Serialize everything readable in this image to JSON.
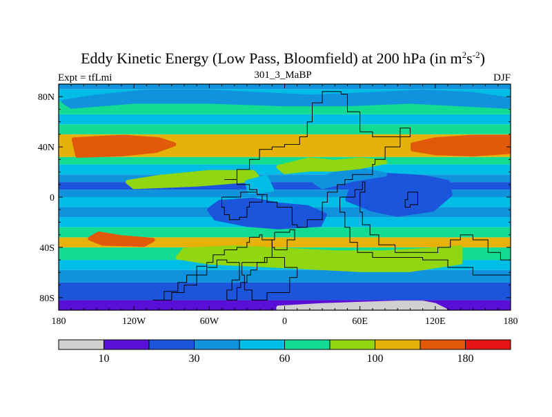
{
  "chart_data": {
    "type": "heatmap",
    "title": {
      "main": "Eddy Kinetic Energy (Low Pass, Bloomfield) at 200 hPa (in m",
      "sup1": "2",
      "mid": "s",
      "sup2": "-2",
      "end": ")"
    },
    "subtitle": "301_3_MaBP",
    "left_label": "Expt = tfLmi",
    "right_label": "DJF",
    "x_range": [
      -180,
      180
    ],
    "y_range": [
      -90,
      90
    ],
    "x_ticks": [
      {
        "value": -180,
        "label": "180"
      },
      {
        "value": -120,
        "label": "120W"
      },
      {
        "value": -60,
        "label": "60W"
      },
      {
        "value": 0,
        "label": "0"
      },
      {
        "value": 60,
        "label": "60E"
      },
      {
        "value": 120,
        "label": "120E"
      },
      {
        "value": 180,
        "label": "180"
      }
    ],
    "y_ticks": [
      {
        "value": 80,
        "label": "80N"
      },
      {
        "value": 40,
        "label": "40N"
      },
      {
        "value": 0,
        "label": "0"
      },
      {
        "value": -40,
        "label": "40S"
      },
      {
        "value": -80,
        "label": "80S"
      }
    ],
    "colorbar": {
      "colors": [
        "#d0d0d0",
        "#5a0fd6",
        "#1a55dc",
        "#1192dc",
        "#00bde6",
        "#12dc92",
        "#90d612",
        "#e6b20a",
        "#e05a0a",
        "#e61414"
      ],
      "label_positions": [
        1,
        3,
        5,
        7,
        9
      ],
      "labels": [
        "10",
        "30",
        "60",
        "100",
        "180"
      ]
    },
    "bands": [
      {
        "lat": [
          -90,
          -82
        ],
        "level": 1
      },
      {
        "lat": [
          -82,
          -68
        ],
        "level": 2
      },
      {
        "lat": [
          -68,
          -58
        ],
        "level": 3
      },
      {
        "lat": [
          -58,
          -50
        ],
        "level": 4
      },
      {
        "lat": [
          -50,
          -40
        ],
        "level": 5
      },
      {
        "lat": [
          -40,
          -32
        ],
        "level": 7
      },
      {
        "lat": [
          -32,
          -24
        ],
        "level": 5
      },
      {
        "lat": [
          -24,
          -16
        ],
        "level": 4
      },
      {
        "lat": [
          -16,
          -8
        ],
        "level": 3
      },
      {
        "lat": [
          -8,
          0
        ],
        "level": 4
      },
      {
        "lat": [
          0,
          6
        ],
        "level": 3
      },
      {
        "lat": [
          6,
          12
        ],
        "level": 2
      },
      {
        "lat": [
          12,
          18
        ],
        "level": 3
      },
      {
        "lat": [
          18,
          26
        ],
        "level": 4
      },
      {
        "lat": [
          26,
          32
        ],
        "level": 5
      },
      {
        "lat": [
          32,
          50
        ],
        "level": 7
      },
      {
        "lat": [
          50,
          58
        ],
        "level": 5
      },
      {
        "lat": [
          58,
          66
        ],
        "level": 4
      },
      {
        "lat": [
          66,
          76
        ],
        "level": 5
      },
      {
        "lat": [
          76,
          86
        ],
        "level": 4
      },
      {
        "lat": [
          86,
          90
        ],
        "level": 3
      }
    ],
    "patches": [
      {
        "level": 8,
        "points": [
          [
            -168,
            46
          ],
          [
            -150,
            47
          ],
          [
            -128,
            48
          ],
          [
            -100,
            46
          ],
          [
            -88,
            42
          ],
          [
            -102,
            37
          ],
          [
            -130,
            34
          ],
          [
            -165,
            33
          ]
        ]
      },
      {
        "level": 8,
        "points": [
          [
            102,
            42
          ],
          [
            120,
            46
          ],
          [
            150,
            48
          ],
          [
            180,
            48
          ],
          [
            180,
            36
          ],
          [
            150,
            34
          ],
          [
            120,
            35
          ],
          [
            102,
            38
          ]
        ]
      },
      {
        "level": 8,
        "points": [
          [
            -148,
            -29
          ],
          [
            -130,
            -32
          ],
          [
            -105,
            -34
          ],
          [
            -112,
            -38
          ],
          [
            -145,
            -37
          ],
          [
            -155,
            -33
          ]
        ]
      },
      {
        "level": 2,
        "points": [
          [
            -52,
            -4
          ],
          [
            -25,
            -2
          ],
          [
            -5,
            -6
          ],
          [
            18,
            -8
          ],
          [
            32,
            -14
          ],
          [
            28,
            -22
          ],
          [
            -5,
            -24
          ],
          [
            -30,
            -22
          ],
          [
            -55,
            -17
          ],
          [
            -60,
            -10
          ]
        ]
      },
      {
        "level": 2,
        "points": [
          [
            55,
            12
          ],
          [
            75,
            18
          ],
          [
            110,
            16
          ],
          [
            130,
            12
          ],
          [
            132,
            2
          ],
          [
            118,
            -10
          ],
          [
            90,
            -14
          ],
          [
            70,
            -10
          ],
          [
            50,
            -2
          ]
        ]
      },
      {
        "level": 3,
        "points": [
          [
            30,
            8
          ],
          [
            55,
            14
          ],
          [
            80,
            18
          ],
          [
            60,
            22
          ],
          [
            38,
            18
          ],
          [
            24,
            12
          ]
        ]
      },
      {
        "level": 6,
        "points": [
          [
            -120,
            8
          ],
          [
            -70,
            10
          ],
          [
            -45,
            12
          ],
          [
            -20,
            14
          ],
          [
            -25,
            20
          ],
          [
            -60,
            20
          ],
          [
            -100,
            16
          ],
          [
            -125,
            12
          ]
        ]
      },
      {
        "level": 6,
        "points": [
          [
            -80,
            -42
          ],
          [
            -40,
            -40
          ],
          [
            0,
            -42
          ],
          [
            40,
            -44
          ],
          [
            80,
            -44
          ],
          [
            115,
            -42
          ],
          [
            140,
            -40
          ],
          [
            140,
            -52
          ],
          [
            100,
            -58
          ],
          [
            60,
            -58
          ],
          [
            20,
            -56
          ],
          [
            -20,
            -54
          ],
          [
            -60,
            -52
          ],
          [
            -85,
            -48
          ]
        ]
      },
      {
        "level": 4,
        "points": [
          [
            -30,
            12
          ],
          [
            -15,
            16
          ],
          [
            -10,
            6
          ],
          [
            -28,
            4
          ]
        ]
      },
      {
        "level": 3,
        "points": [
          [
            -176,
            76
          ],
          [
            -150,
            80
          ],
          [
            -110,
            84
          ],
          [
            -60,
            84
          ],
          [
            -20,
            82
          ],
          [
            20,
            80
          ],
          [
            70,
            82
          ],
          [
            110,
            84
          ],
          [
            150,
            82
          ],
          [
            178,
            78
          ],
          [
            178,
            72
          ],
          [
            140,
            74
          ],
          [
            100,
            76
          ],
          [
            50,
            74
          ],
          [
            0,
            74
          ],
          [
            -60,
            76
          ],
          [
            -120,
            76
          ],
          [
            -170,
            72
          ]
        ]
      },
      {
        "level": 6,
        "points": [
          [
            -5,
            24
          ],
          [
            20,
            30
          ],
          [
            40,
            28
          ],
          [
            60,
            30
          ],
          [
            80,
            28
          ],
          [
            60,
            24
          ],
          [
            40,
            22
          ],
          [
            20,
            22
          ],
          [
            0,
            20
          ]
        ]
      },
      {
        "level": 0,
        "points": [
          [
            -5,
            -90
          ],
          [
            -5,
            -88
          ],
          [
            30,
            -86
          ],
          [
            60,
            -85
          ],
          [
            90,
            -84
          ],
          [
            110,
            -84
          ],
          [
            120,
            -86
          ],
          [
            128,
            -90
          ]
        ]
      }
    ],
    "contours": [
      [
        [
          -105,
          -82
        ],
        [
          -96,
          -75
        ],
        [
          -85,
          -68
        ],
        [
          -78,
          -62
        ],
        [
          -70,
          -55
        ],
        [
          -62,
          -52
        ],
        [
          -57,
          -46
        ],
        [
          -48,
          -42
        ],
        [
          -38,
          -40
        ],
        [
          -30,
          -36
        ],
        [
          -28,
          -32
        ],
        [
          -20,
          -30
        ],
        [
          -18,
          -34
        ],
        [
          -10,
          -40
        ],
        [
          -10,
          -48
        ],
        [
          -16,
          -52
        ],
        [
          -22,
          -58
        ],
        [
          -27,
          -62
        ],
        [
          -30,
          -68
        ],
        [
          -35,
          -72
        ],
        [
          -38,
          -82
        ],
        [
          -46,
          -82
        ],
        [
          -46,
          -74
        ],
        [
          -42,
          -66
        ],
        [
          -36,
          -58
        ],
        [
          -36,
          -52
        ],
        [
          -46,
          -50
        ],
        [
          -54,
          -56
        ],
        [
          -62,
          -62
        ],
        [
          -70,
          -70
        ],
        [
          -80,
          -76
        ],
        [
          -90,
          -82
        ],
        [
          -105,
          -82
        ]
      ],
      [
        [
          -50,
          0
        ],
        [
          -35,
          4
        ],
        [
          -22,
          2
        ],
        [
          -18,
          -4
        ],
        [
          -28,
          -8
        ],
        [
          -30,
          -16
        ],
        [
          -36,
          -18
        ],
        [
          -44,
          -14
        ],
        [
          -48,
          -8
        ],
        [
          -50,
          0
        ]
      ],
      [
        [
          -48,
          14
        ],
        [
          -38,
          22
        ],
        [
          -28,
          30
        ],
        [
          -20,
          38
        ],
        [
          -10,
          40
        ],
        [
          0,
          42
        ],
        [
          12,
          48
        ],
        [
          18,
          60
        ],
        [
          22,
          75
        ],
        [
          30,
          84
        ],
        [
          45,
          82
        ],
        [
          50,
          68
        ],
        [
          60,
          52
        ],
        [
          70,
          48
        ],
        [
          92,
          55
        ],
        [
          100,
          48
        ],
        [
          92,
          40
        ],
        [
          80,
          30
        ],
        [
          72,
          26
        ],
        [
          70,
          18
        ],
        [
          54,
          14
        ],
        [
          48,
          10
        ],
        [
          42,
          4
        ],
        [
          34,
          -4
        ],
        [
          30,
          -18
        ],
        [
          18,
          -24
        ],
        [
          10,
          -22
        ],
        [
          6,
          -8
        ],
        [
          -6,
          -4
        ],
        [
          -14,
          2
        ],
        [
          -22,
          6
        ],
        [
          -26,
          6
        ],
        [
          -28,
          10
        ],
        [
          -38,
          14
        ],
        [
          -48,
          14
        ]
      ],
      [
        [
          44,
          0
        ],
        [
          56,
          6
        ],
        [
          62,
          12
        ],
        [
          64,
          4
        ],
        [
          60,
          -12
        ],
        [
          62,
          -22
        ],
        [
          68,
          -30
        ],
        [
          75,
          -38
        ],
        [
          88,
          -44
        ],
        [
          110,
          -44
        ],
        [
          122,
          -40
        ],
        [
          132,
          -34
        ],
        [
          140,
          -30
        ],
        [
          150,
          -34
        ],
        [
          162,
          -44
        ],
        [
          172,
          -50
        ],
        [
          180,
          -58
        ],
        [
          180,
          -62
        ],
        [
          168,
          -62
        ],
        [
          150,
          -56
        ],
        [
          130,
          -50
        ],
        [
          110,
          -48
        ],
        [
          90,
          -48
        ],
        [
          70,
          -44
        ],
        [
          58,
          -36
        ],
        [
          52,
          -24
        ],
        [
          48,
          -12
        ],
        [
          44,
          0
        ]
      ],
      [
        [
          -8,
          -28
        ],
        [
          4,
          -26
        ],
        [
          8,
          -34
        ],
        [
          2,
          -42
        ],
        [
          -8,
          -40
        ],
        [
          -10,
          -34
        ],
        [
          -8,
          -28
        ]
      ],
      [
        [
          98,
          4
        ],
        [
          104,
          4
        ],
        [
          106,
          -6
        ],
        [
          100,
          -8
        ],
        [
          96,
          -2
        ],
        [
          98,
          4
        ]
      ],
      [
        [
          -34,
          -52
        ],
        [
          -14,
          -48
        ],
        [
          0,
          -56
        ],
        [
          10,
          -64
        ],
        [
          4,
          -76
        ],
        [
          -14,
          -82
        ],
        [
          -26,
          -74
        ],
        [
          -32,
          -62
        ],
        [
          -34,
          -52
        ]
      ]
    ]
  }
}
